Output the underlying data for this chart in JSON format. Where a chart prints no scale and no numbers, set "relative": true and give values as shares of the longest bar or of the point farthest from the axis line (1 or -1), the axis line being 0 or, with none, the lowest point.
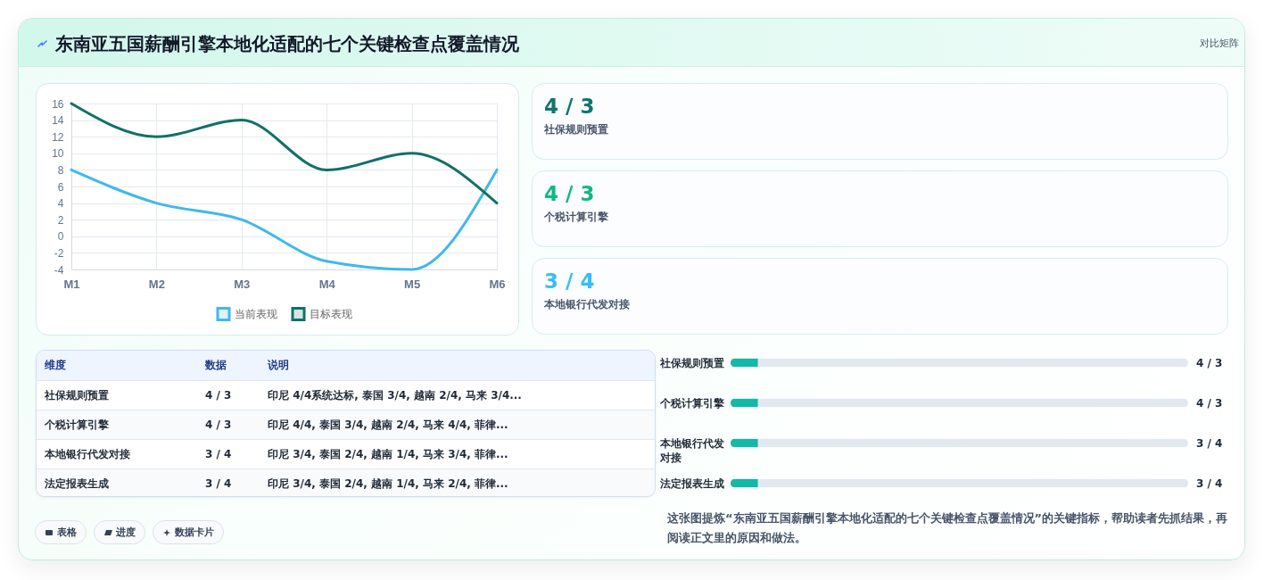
{
  "chart_data": [
    {
      "type": "other",
      "title": "东南亚五国薪酬引擎本地化适配的七个关键检查点覆盖情况",
      "annotations": [
        "对比矩阵"
      ]
    },
    {
      "type": "line",
      "categories": [
        "M1",
        "M2",
        "M3",
        "M4",
        "M5",
        "M6"
      ],
      "series": [
        {
          "name": "当前表现",
          "color": "#41b8ea",
          "values": [
            8,
            4,
            2,
            -3,
            -4,
            8
          ]
        },
        {
          "name": "目标表现",
          "color": "#11706a",
          "values": [
            16,
            12,
            14,
            8,
            10,
            4
          ]
        }
      ],
      "ylim": [
        -4,
        16
      ],
      "yticks": [
        -4,
        -2,
        0,
        2,
        4,
        6,
        8,
        10,
        12,
        14,
        16
      ],
      "grid": true,
      "legend": "bottom"
    },
    {
      "type": "other",
      "categories": [
        "社保规则预置",
        "个税计算引擎",
        "本地银行代发对接"
      ],
      "value_labels": [
        "4 / 3",
        "4 / 3",
        "3 / 4"
      ]
    },
    {
      "type": "other",
      "annotations": [
        "维度",
        "数据",
        "说明",
        "社保规则预置",
        "4 / 3",
        "印尼 4/4系统达标, 泰国 3/4, 越南 2/4, 马来 3/4...",
        "个税计算引擎",
        "4 / 3",
        "印尼 4/4, 泰国 3/4, 越南 2/4, 马来 4/4, 菲律...",
        "本地银行代发对接",
        "3 / 4",
        "印尼 3/4, 泰国 2/4, 越南 1/4, 马来 3/4, 菲律...",
        "法定报表生成",
        "3 / 4",
        "印尼 3/4, 泰国 2/4, 越南 1/4, 马来 2/4, 菲律..."
      ]
    },
    {
      "type": "bar",
      "orientation": "horizontal",
      "stacked": true,
      "relative": true,
      "categories": [
        "社保规则预置",
        "个税计算引擎",
        "本地银行代发对接",
        "法定报表生成"
      ],
      "series": [
        {
          "color": "#14b8a6",
          "values": [
            0.06,
            0.06,
            0.06,
            0.06
          ]
        },
        {
          "color": "#e2e8f0",
          "values": [
            0.94,
            0.94,
            0.94,
            0.94
          ]
        }
      ],
      "annotations": [
        "4 / 3",
        "4 / 3",
        "3 / 4",
        "3 / 4"
      ]
    },
    {
      "type": "other",
      "annotations": [
        "表格",
        "进度",
        "数据卡片",
        "这张图提炼“东南亚五国薪酬引擎本地化适配的七个关键检查点覆盖情况”的关键指标，帮助读者先抓结果，再阅读正文里的原因和做法。"
      ]
    }
  ]
}
